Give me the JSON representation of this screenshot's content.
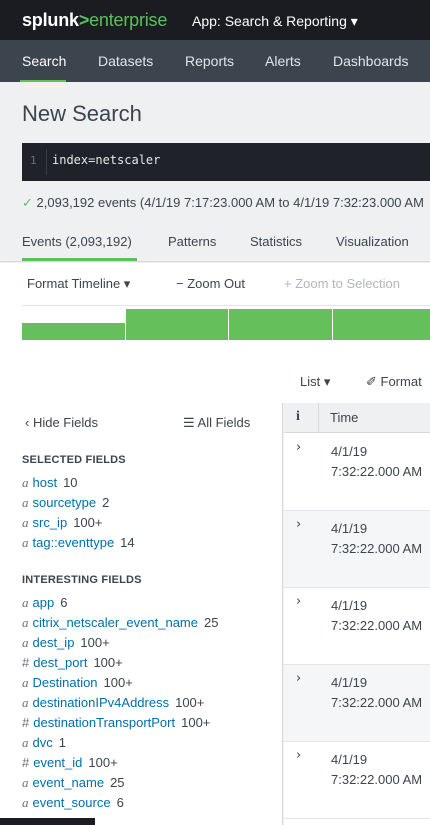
{
  "header": {
    "brand_splunk": "splunk",
    "brand_gt": ">",
    "brand_enterprise": "enterprise",
    "app_label": "App: Search & Reporting ▾"
  },
  "nav": {
    "items": [
      {
        "label": "Search"
      },
      {
        "label": "Datasets"
      },
      {
        "label": "Reports"
      },
      {
        "label": "Alerts"
      },
      {
        "label": "Dashboards"
      }
    ]
  },
  "page_title": "New Search",
  "search": {
    "line_number": "1",
    "query": "index=netscaler"
  },
  "status": {
    "check": "✓",
    "text": "2,093,192 events (4/1/19 7:17:23.000 AM to 4/1/19 7:32:23.000 AM"
  },
  "tabs": [
    {
      "label": "Events (2,093,192)"
    },
    {
      "label": "Patterns"
    },
    {
      "label": "Statistics"
    },
    {
      "label": "Visualization"
    }
  ],
  "timeline": {
    "format_label": "Format Timeline ▾",
    "zoom_out_label": "− Zoom Out",
    "zoom_selection_label": "+ Zoom to Selection",
    "bar_levels": [
      0.55,
      1.0,
      1.0,
      1.0
    ],
    "bar_color": "#65c05b"
  },
  "results_bar": {
    "list_label": "List ▾",
    "format_label": "✐ Format"
  },
  "fields_panel": {
    "hide_label": "‹ Hide Fields",
    "all_label": "☰ All Fields",
    "selected_title": "SELECTED FIELDS",
    "selected": [
      {
        "type": "a",
        "name": "host",
        "count": "10"
      },
      {
        "type": "a",
        "name": "sourcetype",
        "count": "2"
      },
      {
        "type": "a",
        "name": "src_ip",
        "count": "100+"
      },
      {
        "type": "a",
        "name": "tag::eventtype",
        "count": "14"
      }
    ],
    "interesting_title": "INTERESTING FIELDS",
    "interesting": [
      {
        "type": "a",
        "name": "app",
        "count": "6"
      },
      {
        "type": "a",
        "name": "citrix_netscaler_event_name",
        "count": "25"
      },
      {
        "type": "a",
        "name": "dest_ip",
        "count": "100+"
      },
      {
        "type": "#",
        "name": "dest_port",
        "count": "100+"
      },
      {
        "type": "a",
        "name": "Destination",
        "count": "100+"
      },
      {
        "type": "a",
        "name": "destinationIPv4Address",
        "count": "100+"
      },
      {
        "type": "#",
        "name": "destinationTransportPort",
        "count": "100+"
      },
      {
        "type": "a",
        "name": "dvc",
        "count": "1"
      },
      {
        "type": "#",
        "name": "event_id",
        "count": "100+"
      },
      {
        "type": "a",
        "name": "event_name",
        "count": "25"
      },
      {
        "type": "a",
        "name": "event_source",
        "count": "6"
      }
    ]
  },
  "events_table": {
    "info_header": "i",
    "time_header": "Time",
    "rows": [
      {
        "date": "4/1/19",
        "time": "7:32:22.000 AM"
      },
      {
        "date": "4/1/19",
        "time": "7:32:22.000 AM"
      },
      {
        "date": "4/1/19",
        "time": "7:32:22.000 AM"
      },
      {
        "date": "4/1/19",
        "time": "7:32:22.000 AM"
      },
      {
        "date": "4/1/19",
        "time": "7:32:22.000 AM"
      }
    ]
  },
  "colors": {
    "accent": "#5cc05c",
    "topbar": "#1a1c21",
    "navbar": "#3c444d",
    "link": "#006eaa"
  }
}
